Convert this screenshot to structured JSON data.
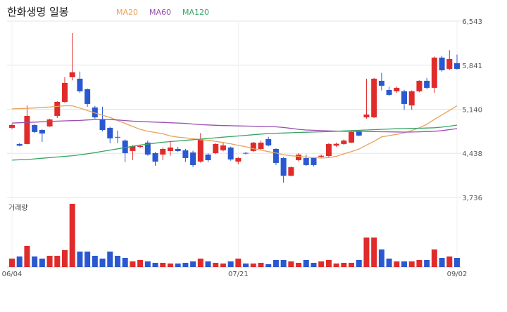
{
  "chart_data": {
    "type": "candlestick",
    "title": "한화생명 일봉",
    "volume_label": "거래량",
    "legend": "top-left",
    "up_color": "#e02b2b",
    "down_color": "#2a58d0",
    "grid": true,
    "categories": [
      "06/04",
      null,
      null,
      null,
      null,
      null,
      null,
      null,
      null,
      null,
      null,
      null,
      null,
      null,
      null,
      null,
      null,
      null,
      null,
      null,
      null,
      null,
      null,
      null,
      null,
      null,
      null,
      null,
      null,
      null,
      "07/21",
      null,
      null,
      null,
      null,
      null,
      null,
      null,
      null,
      null,
      null,
      null,
      null,
      null,
      null,
      null,
      null,
      null,
      null,
      null,
      null,
      null,
      null,
      null,
      null,
      null,
      null,
      null,
      null,
      "09/02"
    ],
    "open": [
      4844,
      4587,
      4587,
      4888,
      4810,
      4866,
      5034,
      5257,
      5649,
      5626,
      5459,
      5168,
      4978,
      4844,
      4700,
      4642,
      4475,
      4540,
      4609,
      4441,
      4419,
      4475,
      4508,
      4486,
      4452,
      4307,
      4419,
      4441,
      4486,
      4531,
      4307,
      4445,
      4475,
      4508,
      4665,
      4508,
      4363,
      4083,
      4329,
      4363,
      4363,
      4385,
      4396,
      4560,
      4587,
      4609,
      4788,
      5011,
      5011,
      5593,
      5447,
      5425,
      5425,
      5201,
      5425,
      5593,
      5481,
      5962,
      5783,
      5872
    ],
    "high": [
      4910,
      4600,
      5200,
      4900,
      4820,
      4990,
      5270,
      5650,
      6353,
      5740,
      5470,
      5190,
      5180,
      4860,
      4800,
      4660,
      4570,
      4570,
      4640,
      4460,
      4530,
      4640,
      4540,
      4510,
      4480,
      4760,
      4440,
      4600,
      4620,
      4545,
      4375,
      4460,
      4620,
      4640,
      4700,
      4520,
      4380,
      4230,
      4440,
      4420,
      4380,
      4420,
      4600,
      4610,
      4660,
      4790,
      4800,
      5626,
      5640,
      5720,
      5500,
      5500,
      5450,
      5440,
      5600,
      5640,
      5980,
      5990,
      6080,
      6010
    ],
    "low": [
      4820,
      4550,
      4580,
      4760,
      4620,
      4860,
      5000,
      5240,
      5600,
      5400,
      5180,
      4990,
      4790,
      4600,
      4600,
      4300,
      4330,
      4520,
      4400,
      4240,
      4330,
      4400,
      4460,
      4300,
      4220,
      4290,
      4300,
      4430,
      4470,
      4320,
      4270,
      4420,
      4460,
      4495,
      4550,
      4250,
      3972,
      4070,
      4310,
      4240,
      4230,
      4360,
      4380,
      4540,
      4570,
      4600,
      4710,
      4990,
      5000,
      5440,
      5350,
      5400,
      5130,
      5130,
      5410,
      5460,
      5400,
      5740,
      5760,
      5770
    ],
    "close": [
      4888,
      4560,
      5034,
      4777,
      4754,
      4978,
      5257,
      5559,
      5727,
      5425,
      5224,
      5011,
      4810,
      4676,
      4695,
      4441,
      4553,
      4555,
      4419,
      4307,
      4508,
      4531,
      4475,
      4363,
      4251,
      4665,
      4329,
      4587,
      4564,
      4341,
      4363,
      4435,
      4609,
      4609,
      4564,
      4285,
      4083,
      4218,
      4419,
      4251,
      4251,
      4400,
      4587,
      4590,
      4642,
      4777,
      4721,
      5056,
      5626,
      5514,
      5369,
      5481,
      5224,
      5425,
      5593,
      5481,
      5962,
      5760,
      5939,
      5783
    ],
    "volume": [
      12,
      15,
      30,
      15,
      12,
      16,
      16,
      24,
      90,
      22,
      22,
      16,
      12,
      22,
      16,
      13,
      8,
      10,
      8,
      6,
      6,
      5,
      5,
      6,
      8,
      12,
      8,
      6,
      5,
      8,
      12,
      5,
      5,
      6,
      4,
      10,
      10,
      8,
      6,
      10,
      6,
      8,
      10,
      5,
      6,
      6,
      10,
      42,
      42,
      25,
      12,
      8,
      8,
      8,
      10,
      10,
      25,
      13,
      15,
      13
    ],
    "series": [
      {
        "name": "MA20",
        "color": "#e8a256",
        "values": [
          5146,
          5150,
          5155,
          5160,
          5170,
          5175,
          5185,
          5195,
          5195,
          5160,
          5120,
          5080,
          5045,
          5010,
          4960,
          4915,
          4865,
          4820,
          4790,
          4770,
          4750,
          4715,
          4695,
          4685,
          4670,
          4655,
          4645,
          4630,
          4610,
          4590,
          4565,
          4545,
          4510,
          4490,
          4465,
          4445,
          4415,
          4400,
          4390,
          4380,
          4370,
          4365,
          4370,
          4390,
          4430,
          4465,
          4505,
          4570,
          4630,
          4700,
          4720,
          4740,
          4765,
          4800,
          4845,
          4900,
          4980,
          5050,
          5120,
          5195
        ]
      },
      {
        "name": "MA60",
        "color": "#9a4db3",
        "values": [
          4920,
          4925,
          4930,
          4935,
          4940,
          4945,
          4950,
          4955,
          4958,
          4962,
          4970,
          4975,
          4978,
          4975,
          4970,
          4960,
          4950,
          4945,
          4940,
          4935,
          4930,
          4925,
          4920,
          4915,
          4905,
          4895,
          4890,
          4885,
          4880,
          4878,
          4875,
          4872,
          4870,
          4868,
          4866,
          4860,
          4850,
          4835,
          4820,
          4810,
          4805,
          4800,
          4795,
          4793,
          4790,
          4790,
          4788,
          4786,
          4784,
          4782,
          4780,
          4778,
          4776,
          4777,
          4780,
          4785,
          4790,
          4800,
          4815,
          4832
        ]
      },
      {
        "name": "MA120",
        "color": "#38a463",
        "values": [
          4330,
          4335,
          4340,
          4350,
          4360,
          4370,
          4380,
          4390,
          4400,
          4415,
          4430,
          4450,
          4470,
          4490,
          4510,
          4530,
          4550,
          4570,
          4585,
          4600,
          4615,
          4625,
          4635,
          4645,
          4655,
          4665,
          4675,
          4685,
          4695,
          4705,
          4715,
          4725,
          4735,
          4745,
          4752,
          4758,
          4762,
          4766,
          4770,
          4774,
          4777,
          4780,
          4785,
          4790,
          4795,
          4800,
          4805,
          4810,
          4815,
          4820,
          4825,
          4830,
          4832,
          4835,
          4838,
          4841,
          4845,
          4855,
          4870,
          4888
        ]
      }
    ],
    "ylim": [
      3736,
      6543
    ],
    "yticks": [
      {
        "value": 3736,
        "label": "3,736"
      },
      {
        "value": 4438,
        "label": "4,438"
      },
      {
        "value": 5140,
        "label": "5,140"
      },
      {
        "value": 5841,
        "label": "5,841"
      },
      {
        "value": 6543,
        "label": "6,543"
      }
    ]
  }
}
